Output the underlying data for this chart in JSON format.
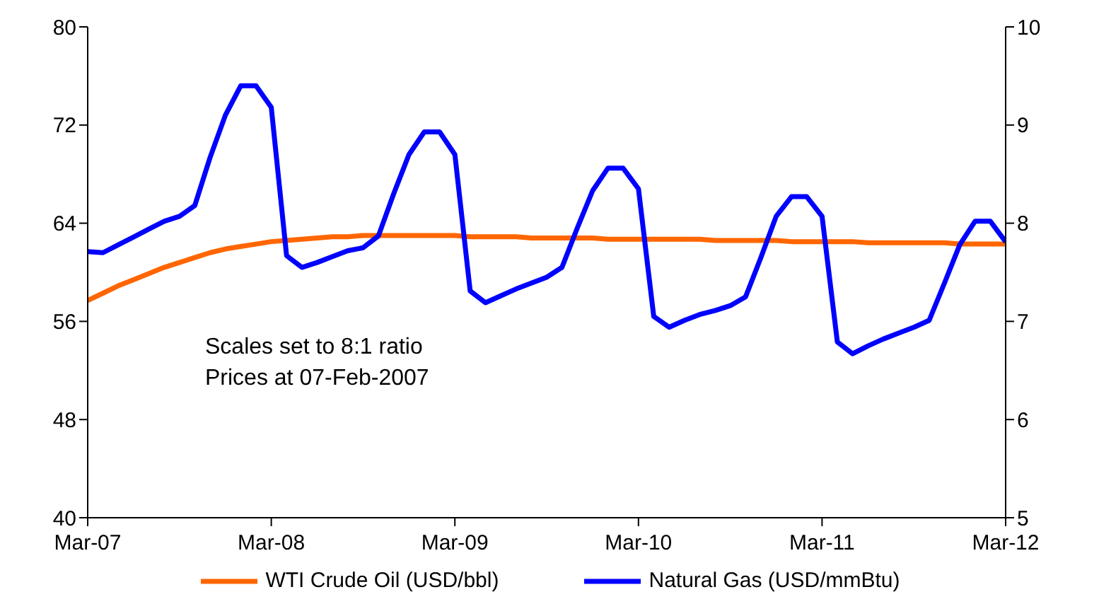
{
  "chart_data": {
    "type": "line",
    "x": [
      "2007-03",
      "2007-04",
      "2007-05",
      "2007-06",
      "2007-07",
      "2007-08",
      "2007-09",
      "2007-10",
      "2007-11",
      "2007-12",
      "2008-01",
      "2008-02",
      "2008-03",
      "2008-04",
      "2008-05",
      "2008-06",
      "2008-07",
      "2008-08",
      "2008-09",
      "2008-10",
      "2008-11",
      "2008-12",
      "2009-01",
      "2009-02",
      "2009-03",
      "2009-04",
      "2009-05",
      "2009-06",
      "2009-07",
      "2009-08",
      "2009-09",
      "2009-10",
      "2009-11",
      "2009-12",
      "2010-01",
      "2010-02",
      "2010-03",
      "2010-04",
      "2010-05",
      "2010-06",
      "2010-07",
      "2010-08",
      "2010-09",
      "2010-10",
      "2010-11",
      "2010-12",
      "2011-01",
      "2011-02",
      "2011-03",
      "2011-04",
      "2011-05",
      "2011-06",
      "2011-07",
      "2011-08",
      "2011-09",
      "2011-10",
      "2011-11",
      "2011-12",
      "2012-01",
      "2012-02",
      "2012-03"
    ],
    "series": [
      {
        "name": "WTI Crude Oil (USD/bbl)",
        "color": "#ff6600",
        "values": [
          57.7,
          58.3,
          58.9,
          59.4,
          59.9,
          60.4,
          60.8,
          61.2,
          61.6,
          61.9,
          62.1,
          62.3,
          62.5,
          62.6,
          62.7,
          62.8,
          62.9,
          62.9,
          63.0,
          63.0,
          63.0,
          63.0,
          63.0,
          63.0,
          63.0,
          62.9,
          62.9,
          62.9,
          62.9,
          62.8,
          62.8,
          62.8,
          62.8,
          62.8,
          62.7,
          62.7,
          62.7,
          62.7,
          62.7,
          62.7,
          62.7,
          62.6,
          62.6,
          62.6,
          62.6,
          62.6,
          62.5,
          62.5,
          62.5,
          62.5,
          62.5,
          62.4,
          62.4,
          62.4,
          62.4,
          62.4,
          62.4,
          62.3,
          62.3,
          62.3,
          62.3
        ]
      },
      {
        "name": "Natural Gas (USD/mmBtu)",
        "color": "#0000ff",
        "axis": "y2",
        "values": [
          7.71,
          7.7,
          7.78,
          7.86,
          7.94,
          8.02,
          8.07,
          8.18,
          8.67,
          9.1,
          9.4,
          9.4,
          9.18,
          7.67,
          7.55,
          7.6,
          7.66,
          7.72,
          7.75,
          7.87,
          8.3,
          8.7,
          8.93,
          8.93,
          8.7,
          7.31,
          7.19,
          7.26,
          7.33,
          7.39,
          7.45,
          7.55,
          7.95,
          8.33,
          8.56,
          8.56,
          8.35,
          7.05,
          6.94,
          7.01,
          7.07,
          7.11,
          7.16,
          7.25,
          7.65,
          8.07,
          8.27,
          8.27,
          8.07,
          6.79,
          6.67,
          6.75,
          6.82,
          6.88,
          6.94,
          7.01,
          7.39,
          7.78,
          8.02,
          8.02,
          7.81
        ]
      }
    ],
    "xlim": [
      "2007-03",
      "2012-03"
    ],
    "xticks": [
      {
        "value": "2007-03",
        "label": "Mar-07"
      },
      {
        "value": "2008-03",
        "label": "Mar-08"
      },
      {
        "value": "2009-03",
        "label": "Mar-09"
      },
      {
        "value": "2010-03",
        "label": "Mar-10"
      },
      {
        "value": "2011-03",
        "label": "Mar-11"
      },
      {
        "value": "2012-03",
        "label": "Mar-12"
      }
    ],
    "ylim": [
      40,
      80
    ],
    "yticks": [
      40,
      48,
      56,
      64,
      72,
      80
    ],
    "y2lim": [
      5,
      10
    ],
    "y2ticks": [
      5,
      6,
      7,
      8,
      9,
      10
    ],
    "annotations": [
      "Scales set to 8:1 ratio",
      "Prices at 07-Feb-2007"
    ],
    "grid": false,
    "legend": "bottom",
    "marker": "none",
    "line_style": "solid"
  }
}
